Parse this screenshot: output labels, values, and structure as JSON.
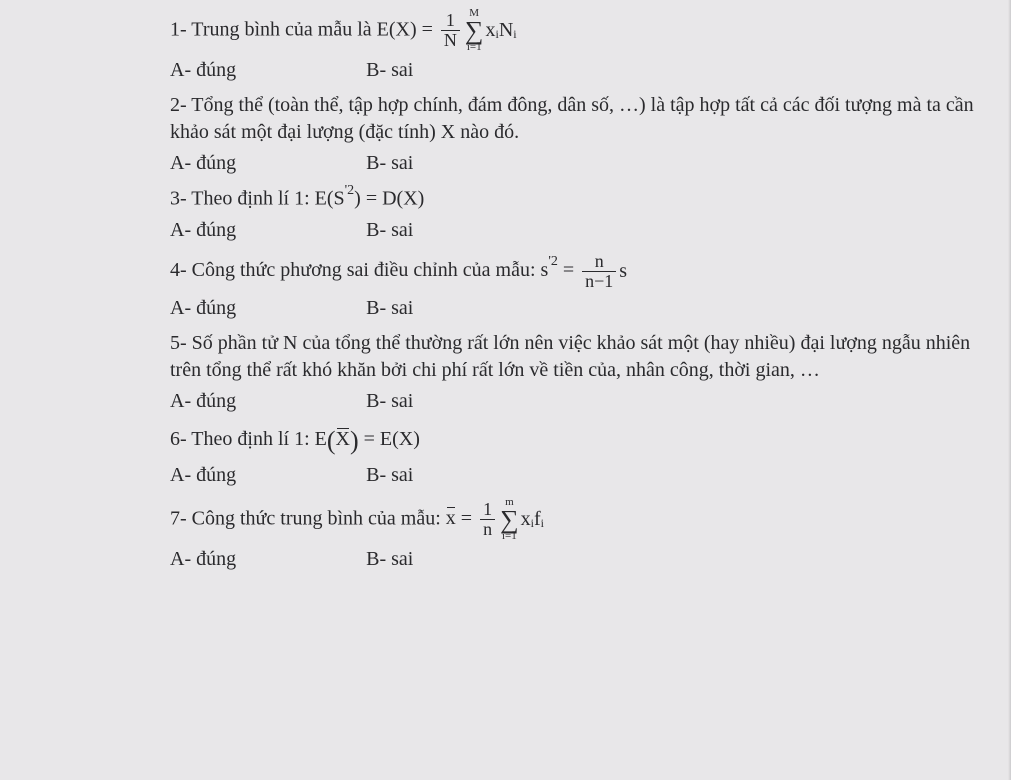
{
  "q1": {
    "prefix": "1- Trung bình của mẫu là E(X) =",
    "frac_num": "1",
    "frac_den": "N",
    "sum_top": "M",
    "sum_bot": "i=1",
    "after": "x",
    "sub_i": "i",
    "N": "N",
    "sub_i2": "i",
    "a": "A- đúng",
    "b": "B- sai"
  },
  "q2": {
    "text": "2- Tổng thể (toàn thể, tập hợp chính, đám đông, dân số, …) là tập hợp tất cả các đối tượng mà ta cần khảo sát một đại lượng (đặc tính) X nào đó.",
    "a": "A- đúng",
    "b": "B- sai"
  },
  "q3": {
    "prefix": "3- Theo định lí 1: E(S",
    "sup": "'2",
    "mid": ") = D(X)",
    "a": "A- đúng",
    "b": "B- sai"
  },
  "q4": {
    "prefix": "4- Công thức phương sai điều chỉnh của mẫu: s",
    "sup": "'2",
    "eq": " = ",
    "frac_num": "n",
    "frac_den": "n−1",
    "after": "s",
    "a": "A- đúng",
    "b": "B- sai"
  },
  "q5": {
    "text": "5- Số phần tử N của tổng thể thường rất lớn nên việc khảo sát một (hay nhiều) đại lượng ngẫu nhiên trên tổng thể rất khó khăn bởi chi phí rất lớn về tiền của, nhân công, thời gian, …",
    "a": "A- đúng",
    "b": "B- sai"
  },
  "q6": {
    "prefix": "6- Theo định lí 1: E",
    "lparen": "(",
    "xbar": "X",
    "rparen": ")",
    "eq": " = E(X)",
    "a": "A- đúng",
    "b": "B- sai"
  },
  "q7": {
    "prefix": "7- Công thức trung bình của mẫu: ",
    "xbar": "x",
    "eq": " = ",
    "frac_num": "1",
    "frac_den": "n",
    "sum_top": "m",
    "sum_bot": "i=1",
    "x": "x",
    "sub_i": "i",
    "f": "f",
    "sub_i2": "i",
    "a": "A- đúng",
    "b": "B- sai"
  }
}
